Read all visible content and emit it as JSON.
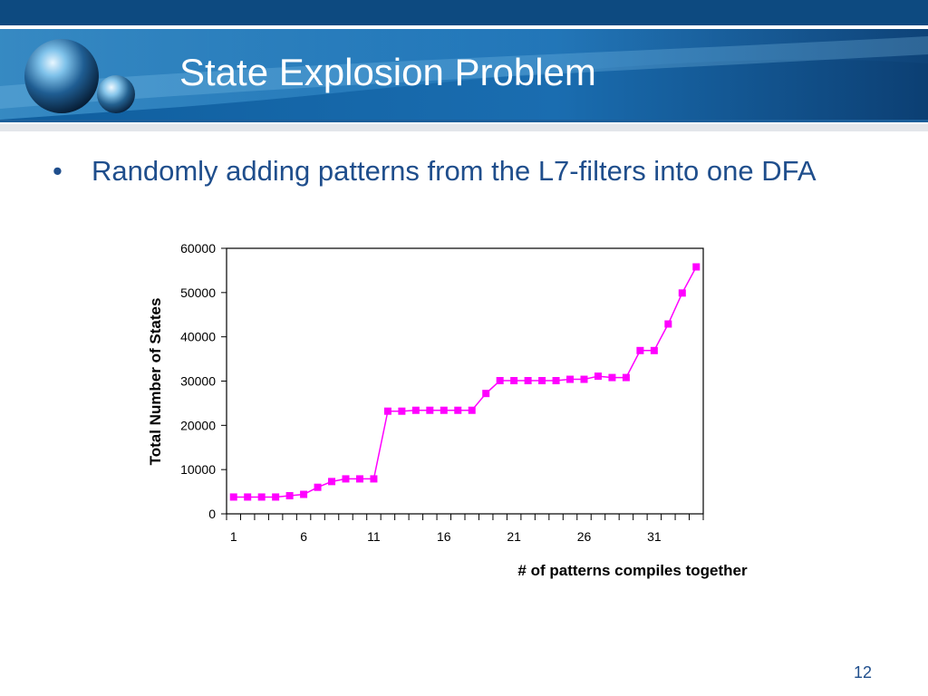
{
  "slide": {
    "title": "State Explosion Problem",
    "bullet_symbol": "•",
    "bullet_text": "Randomly adding patterns from the L7-filters into one DFA",
    "page_number": "12"
  },
  "colors": {
    "header_dark": "#0b4d86",
    "header_light": "#2e8fd0",
    "text_blue": "#1f4e8c",
    "series": "#ff00ff"
  },
  "chart_data": {
    "type": "line",
    "title": "",
    "xlabel": "# of patterns compiles together",
    "ylabel": "Total Number of States",
    "xlim": [
      1,
      34
    ],
    "ylim": [
      0,
      60000
    ],
    "xticks": [
      1,
      6,
      11,
      16,
      21,
      26,
      31
    ],
    "yticks": [
      0,
      10000,
      20000,
      30000,
      40000,
      50000,
      60000
    ],
    "legend": "none",
    "grid": false,
    "series": [
      {
        "x": [
          1,
          2,
          3,
          4,
          5,
          6,
          7,
          8,
          9,
          10,
          11,
          12,
          13,
          14,
          15,
          16,
          17,
          18,
          19,
          20,
          21,
          22,
          23,
          24,
          25,
          26,
          27,
          28,
          29,
          30,
          31,
          32,
          33,
          34
        ],
        "values": [
          3800,
          3800,
          3800,
          3800,
          4100,
          4400,
          6000,
          7300,
          7900,
          7900,
          7900,
          23200,
          23200,
          23400,
          23400,
          23400,
          23400,
          23400,
          27200,
          30100,
          30100,
          30100,
          30100,
          30100,
          30400,
          30400,
          31100,
          30800,
          30800,
          36900,
          36900,
          42900,
          49900,
          55800
        ]
      }
    ]
  }
}
